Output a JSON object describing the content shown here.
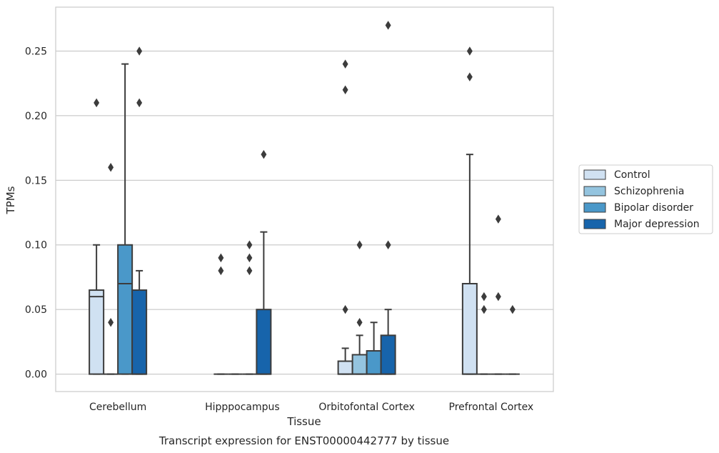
{
  "chart_data": {
    "type": "box",
    "title": "Transcript expression for ENST00000442777 by tissue",
    "xlabel": "Tissue",
    "ylabel": "TPMs",
    "ylim": [
      -0.0135,
      0.284
    ],
    "yticks": [
      "0.00",
      "0.05",
      "0.10",
      "0.15",
      "0.20",
      "0.25"
    ],
    "grid": true,
    "legend_position": "right",
    "categories": [
      "Cerebellum",
      "Hipppocampus",
      "Orbitofontal Cortex",
      "Prefrontal Cortex"
    ],
    "series": [
      {
        "name": "Control",
        "color": "#d0e1f2",
        "boxes": [
          {
            "q1": 0.0,
            "median": 0.06,
            "q3": 0.065,
            "whisker_low": 0.0,
            "whisker_high": 0.1,
            "outliers": [
              0.21
            ]
          },
          {
            "q1": 0.0,
            "median": 0.0,
            "q3": 0.0,
            "whisker_low": 0.0,
            "whisker_high": 0.0,
            "outliers": [
              0.08,
              0.09
            ]
          },
          {
            "q1": 0.0,
            "median": 0.0,
            "q3": 0.01,
            "whisker_low": 0.0,
            "whisker_high": 0.02,
            "outliers": [
              0.05,
              0.22,
              0.24
            ]
          },
          {
            "q1": 0.0,
            "median": 0.0,
            "q3": 0.07,
            "whisker_low": 0.0,
            "whisker_high": 0.17,
            "outliers": [
              0.23,
              0.25
            ]
          }
        ]
      },
      {
        "name": "Schizophrenia",
        "color": "#94c4df",
        "boxes": [
          {
            "q1": 0.0,
            "median": 0.0,
            "q3": 0.0,
            "whisker_low": 0.0,
            "whisker_high": 0.0,
            "outliers": [
              0.04,
              0.16
            ]
          },
          {
            "q1": 0.0,
            "median": 0.0,
            "q3": 0.0,
            "whisker_low": 0.0,
            "whisker_high": 0.0,
            "outliers": []
          },
          {
            "q1": 0.0,
            "median": 0.0,
            "q3": 0.015,
            "whisker_low": 0.0,
            "whisker_high": 0.03,
            "outliers": [
              0.04,
              0.1
            ]
          },
          {
            "q1": 0.0,
            "median": 0.0,
            "q3": 0.0,
            "whisker_low": 0.0,
            "whisker_high": 0.0,
            "outliers": [
              0.05,
              0.06
            ]
          }
        ]
      },
      {
        "name": "Bipolar disorder",
        "color": "#4a98c9",
        "boxes": [
          {
            "q1": 0.0,
            "median": 0.07,
            "q3": 0.1,
            "whisker_low": 0.0,
            "whisker_high": 0.24,
            "outliers": []
          },
          {
            "q1": 0.0,
            "median": 0.0,
            "q3": 0.0,
            "whisker_low": 0.0,
            "whisker_high": 0.0,
            "outliers": [
              0.08,
              0.09,
              0.1
            ]
          },
          {
            "q1": 0.0,
            "median": 0.0,
            "q3": 0.018,
            "whisker_low": 0.0,
            "whisker_high": 0.04,
            "outliers": []
          },
          {
            "q1": 0.0,
            "median": 0.0,
            "q3": 0.0,
            "whisker_low": 0.0,
            "whisker_high": 0.0,
            "outliers": [
              0.06,
              0.12
            ]
          }
        ]
      },
      {
        "name": "Major depression",
        "color": "#1764ab",
        "boxes": [
          {
            "q1": 0.0,
            "median": 0.0,
            "q3": 0.065,
            "whisker_low": 0.0,
            "whisker_high": 0.08,
            "outliers": [
              0.21,
              0.25
            ]
          },
          {
            "q1": 0.0,
            "median": 0.0,
            "q3": 0.05,
            "whisker_low": 0.0,
            "whisker_high": 0.11,
            "outliers": [
              0.17
            ]
          },
          {
            "q1": 0.0,
            "median": 0.0,
            "q3": 0.03,
            "whisker_low": 0.0,
            "whisker_high": 0.05,
            "outliers": [
              0.1,
              0.27
            ]
          },
          {
            "q1": 0.0,
            "median": 0.0,
            "q3": 0.0,
            "whisker_low": 0.0,
            "whisker_high": 0.0,
            "outliers": [
              0.05
            ]
          }
        ]
      }
    ]
  }
}
